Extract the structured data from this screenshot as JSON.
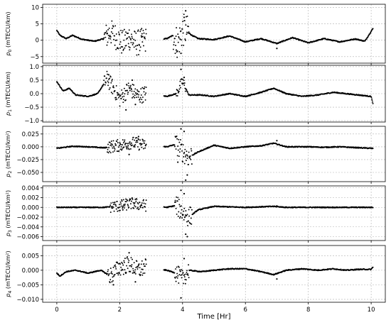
{
  "chart_data": {
    "type": "scatter",
    "x_axis": {
      "label": "Time [Hr]",
      "ticks": [
        "0",
        "2",
        "4",
        "6",
        "8",
        "10"
      ],
      "tick_values": [
        0,
        2,
        4,
        6,
        8,
        10
      ],
      "range": [
        -0.45,
        10.45
      ]
    },
    "grid": true,
    "gap": [
      2.85,
      3.4
    ],
    "marker_color": "#000000",
    "panels": [
      {
        "ylabel_sym": "p",
        "ylabel_sub": "0",
        "ylabel_unit": " (mTECU/km)",
        "yticks": [
          "10",
          "5",
          "0",
          "−5"
        ],
        "ytick_values": [
          10,
          5,
          0,
          -5
        ],
        "ylim": [
          -7,
          11
        ],
        "trend": [
          [
            0,
            3
          ],
          [
            0.1,
            1.5
          ],
          [
            0.3,
            0.5
          ],
          [
            0.5,
            1.5
          ],
          [
            0.8,
            0.3
          ],
          [
            1.2,
            -0.3
          ],
          [
            1.5,
            0.5
          ],
          [
            1.7,
            2.5
          ],
          [
            1.9,
            1
          ],
          [
            2.1,
            -1
          ],
          [
            2.3,
            1
          ],
          [
            2.5,
            -1
          ],
          [
            2.8,
            0
          ],
          [
            3.5,
            0.5
          ],
          [
            3.7,
            1.5
          ],
          [
            3.85,
            -1
          ],
          [
            4,
            3
          ],
          [
            4.1,
            3
          ],
          [
            4.3,
            1.5
          ],
          [
            4.5,
            0.5
          ],
          [
            5,
            0.2
          ],
          [
            5.5,
            1.3
          ],
          [
            6,
            -0.5
          ],
          [
            6.5,
            0.5
          ],
          [
            7,
            -1
          ],
          [
            7.5,
            0.8
          ],
          [
            8,
            -0.8
          ],
          [
            8.5,
            0.5
          ],
          [
            9,
            -0.5
          ],
          [
            9.5,
            0.4
          ],
          [
            9.8,
            -0.3
          ],
          [
            10.05,
            3.5
          ]
        ],
        "scatter": [
          [
            1.6,
            2
          ],
          [
            2.3,
            1
          ],
          [
            2.7,
            1
          ],
          [
            3.95,
            -4
          ],
          [
            4.05,
            7
          ],
          [
            4.1,
            9
          ],
          [
            3.8,
            -3
          ],
          [
            7,
            -2.5
          ]
        ],
        "spread": [
          [
            1.5,
            2.85,
            4
          ],
          [
            3.7,
            4.2,
            5
          ]
        ]
      },
      {
        "ylabel_sym": "p",
        "ylabel_sub": "1",
        "ylabel_unit": " (mTECU/km)",
        "yticks": [
          "1.0",
          "0.5",
          "0.0",
          "−0.5",
          "−1.0"
        ],
        "ytick_values": [
          1,
          0.5,
          0,
          -0.5,
          -1
        ],
        "ylim": [
          -1.05,
          1.05
        ],
        "trend": [
          [
            0,
            0.45
          ],
          [
            0.2,
            0.1
          ],
          [
            0.4,
            0.2
          ],
          [
            0.6,
            -0.05
          ],
          [
            1,
            -0.1
          ],
          [
            1.3,
            0
          ],
          [
            1.6,
            0.55
          ],
          [
            1.8,
            0.2
          ],
          [
            2,
            -0.2
          ],
          [
            2.3,
            0.2
          ],
          [
            2.6,
            -0.1
          ],
          [
            2.8,
            0
          ],
          [
            3.5,
            -0.1
          ],
          [
            3.8,
            0
          ],
          [
            4,
            0.45
          ],
          [
            4.2,
            -0.05
          ],
          [
            4.6,
            -0.05
          ],
          [
            5,
            -0.1
          ],
          [
            5.5,
            0
          ],
          [
            6,
            -0.1
          ],
          [
            6.5,
            0.05
          ],
          [
            6.9,
            0.2
          ],
          [
            7.3,
            0
          ],
          [
            7.8,
            -0.1
          ],
          [
            8.3,
            -0.05
          ],
          [
            8.8,
            0.05
          ],
          [
            9.2,
            0
          ],
          [
            9.6,
            -0.05
          ],
          [
            10,
            -0.1
          ],
          [
            10.05,
            -0.35
          ]
        ],
        "scatter": [
          [
            2.2,
            -0.6
          ],
          [
            2.5,
            -0.4
          ],
          [
            3.95,
            0.9
          ],
          [
            4.05,
            0.6
          ],
          [
            2.4,
            0.5
          ],
          [
            1.65,
            0.7
          ]
        ],
        "spread": [
          [
            1.5,
            2.85,
            0.3
          ],
          [
            3.8,
            4.1,
            0.2
          ]
        ]
      },
      {
        "ylabel_sym": "p",
        "ylabel_sub": "2",
        "ylabel_unit": " (mTECU/km²)",
        "yticks": [
          "0.025",
          "0.000",
          "−0.025",
          "−0.050"
        ],
        "ytick_values": [
          0.025,
          0,
          -0.025,
          -0.05
        ],
        "ylim": [
          -0.068,
          0.04
        ],
        "trend": [
          [
            0,
            -0.003
          ],
          [
            0.5,
            0.001
          ],
          [
            1,
            0
          ],
          [
            1.5,
            -0.002
          ],
          [
            2,
            0.003
          ],
          [
            2.4,
            0.008
          ],
          [
            2.8,
            0.003
          ],
          [
            3.5,
            0
          ],
          [
            3.8,
            0.005
          ],
          [
            4,
            -0.01
          ],
          [
            4.2,
            -0.02
          ],
          [
            4.5,
            -0.01
          ],
          [
            5,
            0.003
          ],
          [
            5.5,
            -0.003
          ],
          [
            6,
            0
          ],
          [
            6.5,
            0.002
          ],
          [
            6.9,
            0.007
          ],
          [
            7.3,
            0
          ],
          [
            8,
            0
          ],
          [
            8.5,
            -0.001
          ],
          [
            9,
            0
          ],
          [
            10,
            -0.003
          ]
        ],
        "scatter": [
          [
            3.95,
            0.035
          ],
          [
            4.05,
            0.03
          ],
          [
            4.15,
            -0.055
          ],
          [
            4.1,
            -0.065
          ],
          [
            3.85,
            -0.03
          ],
          [
            7,
            0.012
          ],
          [
            2.3,
            -0.015
          ],
          [
            2.6,
            0.02
          ]
        ],
        "spread": [
          [
            1.6,
            2.85,
            0.012
          ],
          [
            3.75,
            4.3,
            0.02
          ]
        ]
      },
      {
        "ylabel_sym": "p",
        "ylabel_sub": "3",
        "ylabel_unit": " (mTECU/km²)",
        "yticks": [
          "0.004",
          "0.002",
          "0.000",
          "−0.002",
          "−0.004",
          "−0.006"
        ],
        "ytick_values": [
          0.004,
          0.002,
          0,
          -0.002,
          -0.004,
          -0.006
        ],
        "ylim": [
          -0.0068,
          0.0044
        ],
        "trend": [
          [
            0,
            0
          ],
          [
            1,
            0
          ],
          [
            1.5,
            0
          ],
          [
            2,
            0.0003
          ],
          [
            2.4,
            0.0008
          ],
          [
            2.8,
            0.0004
          ],
          [
            3.5,
            0
          ],
          [
            3.8,
            0.0004
          ],
          [
            4,
            -0.001
          ],
          [
            4.2,
            -0.002
          ],
          [
            4.5,
            -0.0005
          ],
          [
            5,
            0.0002
          ],
          [
            6,
            0
          ],
          [
            6.9,
            0.0002
          ],
          [
            7.3,
            0
          ],
          [
            10,
            0
          ]
        ],
        "scatter": [
          [
            3.95,
            0.0035
          ],
          [
            4.05,
            0.0028
          ],
          [
            4.15,
            -0.006
          ],
          [
            4.1,
            -0.0055
          ],
          [
            7,
            0.0003
          ],
          [
            2.1,
            -0.0005
          ]
        ],
        "spread": [
          [
            1.7,
            2.85,
            0.0012
          ],
          [
            3.75,
            4.3,
            0.002
          ]
        ]
      },
      {
        "ylabel_sym": "p",
        "ylabel_sub": "4",
        "ylabel_unit": " (mTECU/km²)",
        "yticks": [
          "0.005",
          "0.000",
          "−0.005",
          "−0.010"
        ],
        "ytick_values": [
          0.005,
          0,
          -0.005,
          -0.01
        ],
        "ylim": [
          -0.011,
          0.0085
        ],
        "trend": [
          [
            0,
            -0.001
          ],
          [
            0.1,
            -0.002
          ],
          [
            0.3,
            -0.0005
          ],
          [
            0.6,
            0
          ],
          [
            1,
            -0.001
          ],
          [
            1.4,
            0
          ],
          [
            1.7,
            -0.002
          ],
          [
            2,
            0.001
          ],
          [
            2.3,
            0.002
          ],
          [
            2.6,
            0
          ],
          [
            2.8,
            0.001
          ],
          [
            3.5,
            0
          ],
          [
            3.8,
            -0.001
          ],
          [
            4,
            -0.003
          ],
          [
            4.2,
            0
          ],
          [
            4.6,
            -0.0005
          ],
          [
            5,
            0
          ],
          [
            5.5,
            0.0005
          ],
          [
            6,
            0.0005
          ],
          [
            6.5,
            -0.0005
          ],
          [
            6.9,
            -0.0015
          ],
          [
            7.3,
            0
          ],
          [
            7.8,
            0.0005
          ],
          [
            8.3,
            0
          ],
          [
            8.8,
            0.0005
          ],
          [
            9.2,
            0
          ],
          [
            9.6,
            0.0003
          ],
          [
            10,
            0.0003
          ],
          [
            10.05,
            0.001
          ]
        ],
        "scatter": [
          [
            3.95,
            -0.0095
          ],
          [
            4.05,
            0.004
          ],
          [
            2.3,
            0.006
          ],
          [
            2.5,
            -0.004
          ],
          [
            7,
            -0.003
          ],
          [
            1.8,
            -0.005
          ]
        ],
        "spread": [
          [
            1.6,
            2.85,
            0.003
          ],
          [
            3.75,
            4.2,
            0.003
          ]
        ]
      }
    ]
  }
}
